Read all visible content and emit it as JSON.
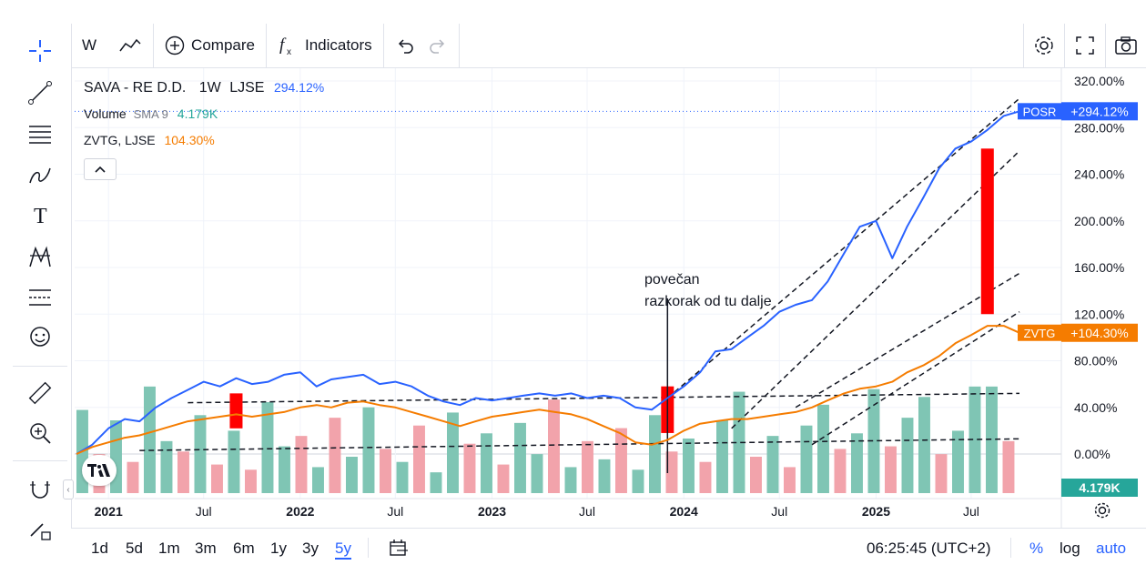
{
  "toolbar": {
    "interval": "W",
    "compare_label": "Compare",
    "indicators_label": "Indicators"
  },
  "legend": {
    "main_symbol": "SAVA - RE D.D.",
    "main_interval": "1W",
    "main_exchange": "LJSE",
    "main_value": "294.12%",
    "volume_label": "Volume",
    "volume_ma": "SMA 9",
    "volume_value": "4.179K",
    "compare_symbol": "ZVTG, LJSE",
    "compare_value": "104.30%"
  },
  "annotation": {
    "line1": "povečan",
    "line2": "razkorak od tu dalje"
  },
  "price_scale": {
    "labels": [
      "320.00%",
      "280.00%",
      "240.00%",
      "200.00%",
      "160.00%",
      "120.00%",
      "80.00%",
      "40.00%",
      "0.00%"
    ],
    "posr_tag": "POSR",
    "posr_value": "+294.12%",
    "zvtg_tag": "ZVTG",
    "zvtg_value": "+104.30%",
    "volume_tag": "4.179K"
  },
  "time_scale": {
    "labels": [
      "2021",
      "Jul",
      "2022",
      "Jul",
      "2023",
      "Jul",
      "2024",
      "Jul",
      "2025",
      "Jul"
    ]
  },
  "bottom": {
    "ranges": [
      "1d",
      "5d",
      "1m",
      "3m",
      "6m",
      "1y",
      "3y",
      "5y"
    ],
    "active_range": "5y",
    "clock": "06:25:45 (UTC+2)",
    "pct": "%",
    "log": "log",
    "auto": "auto"
  },
  "colors": {
    "posr": "#2962ff",
    "zvtg": "#f57c00",
    "vol_up": "#7fc5b4",
    "vol_down": "#f2a3ab",
    "annotation_bar": "#ff0000"
  },
  "chart_data": {
    "type": "line",
    "x_range": [
      "2020-11",
      "2025-10"
    ],
    "y_unit": "%",
    "ylim": [
      -20,
      330
    ],
    "log_scale": false,
    "series": [
      {
        "name": "POSR",
        "points": [
          [
            "2020-11-01",
            0
          ],
          [
            "2020-12-01",
            8
          ],
          [
            "2021-01-01",
            22
          ],
          [
            "2021-02-01",
            30
          ],
          [
            "2021-03-01",
            28
          ],
          [
            "2021-04-01",
            40
          ],
          [
            "2021-05-01",
            48
          ],
          [
            "2021-06-01",
            55
          ],
          [
            "2021-07-01",
            62
          ],
          [
            "2021-08-01",
            58
          ],
          [
            "2021-09-01",
            65
          ],
          [
            "2021-10-01",
            60
          ],
          [
            "2021-11-01",
            62
          ],
          [
            "2021-12-01",
            68
          ],
          [
            "2022-01-01",
            70
          ],
          [
            "2022-02-01",
            58
          ],
          [
            "2022-03-01",
            64
          ],
          [
            "2022-04-01",
            66
          ],
          [
            "2022-05-01",
            68
          ],
          [
            "2022-06-01",
            60
          ],
          [
            "2022-07-01",
            62
          ],
          [
            "2022-08-01",
            58
          ],
          [
            "2022-09-01",
            50
          ],
          [
            "2022-10-01",
            45
          ],
          [
            "2022-11-01",
            42
          ],
          [
            "2022-12-01",
            48
          ],
          [
            "2023-01-01",
            46
          ],
          [
            "2023-02-01",
            48
          ],
          [
            "2023-03-01",
            50
          ],
          [
            "2023-04-01",
            52
          ],
          [
            "2023-05-01",
            50
          ],
          [
            "2023-06-01",
            52
          ],
          [
            "2023-07-01",
            48
          ],
          [
            "2023-08-01",
            50
          ],
          [
            "2023-09-01",
            48
          ],
          [
            "2023-10-01",
            40
          ],
          [
            "2023-11-01",
            38
          ],
          [
            "2023-12-01",
            48
          ],
          [
            "2024-01-01",
            58
          ],
          [
            "2024-02-01",
            70
          ],
          [
            "2024-03-01",
            88
          ],
          [
            "2024-04-01",
            90
          ],
          [
            "2024-05-01",
            100
          ],
          [
            "2024-06-01",
            110
          ],
          [
            "2024-07-01",
            122
          ],
          [
            "2024-08-01",
            128
          ],
          [
            "2024-09-01",
            132
          ],
          [
            "2024-10-01",
            148
          ],
          [
            "2024-11-01",
            172
          ],
          [
            "2024-12-01",
            195
          ],
          [
            "2025-01-01",
            200
          ],
          [
            "2025-02-01",
            168
          ],
          [
            "2025-03-01",
            195
          ],
          [
            "2025-04-01",
            220
          ],
          [
            "2025-05-01",
            245
          ],
          [
            "2025-06-01",
            262
          ],
          [
            "2025-07-01",
            268
          ],
          [
            "2025-08-01",
            278
          ],
          [
            "2025-09-01",
            290
          ],
          [
            "2025-10-01",
            294
          ]
        ]
      },
      {
        "name": "ZVTG",
        "points": [
          [
            "2020-11-01",
            0
          ],
          [
            "2020-12-01",
            6
          ],
          [
            "2021-01-01",
            10
          ],
          [
            "2021-02-01",
            14
          ],
          [
            "2021-03-01",
            16
          ],
          [
            "2021-04-01",
            20
          ],
          [
            "2021-05-01",
            24
          ],
          [
            "2021-06-01",
            28
          ],
          [
            "2021-07-01",
            30
          ],
          [
            "2021-08-01",
            32
          ],
          [
            "2021-09-01",
            34
          ],
          [
            "2021-10-01",
            32
          ],
          [
            "2021-11-01",
            34
          ],
          [
            "2021-12-01",
            36
          ],
          [
            "2022-01-01",
            40
          ],
          [
            "2022-02-01",
            42
          ],
          [
            "2022-03-01",
            40
          ],
          [
            "2022-04-01",
            44
          ],
          [
            "2022-05-01",
            45
          ],
          [
            "2022-06-01",
            42
          ],
          [
            "2022-07-01",
            40
          ],
          [
            "2022-08-01",
            36
          ],
          [
            "2022-09-01",
            32
          ],
          [
            "2022-10-01",
            28
          ],
          [
            "2022-11-01",
            24
          ],
          [
            "2022-12-01",
            28
          ],
          [
            "2023-01-01",
            32
          ],
          [
            "2023-02-01",
            34
          ],
          [
            "2023-03-01",
            36
          ],
          [
            "2023-04-01",
            38
          ],
          [
            "2023-05-01",
            36
          ],
          [
            "2023-06-01",
            34
          ],
          [
            "2023-07-01",
            30
          ],
          [
            "2023-08-01",
            24
          ],
          [
            "2023-09-01",
            18
          ],
          [
            "2023-10-01",
            10
          ],
          [
            "2023-11-01",
            8
          ],
          [
            "2023-12-01",
            12
          ],
          [
            "2024-01-01",
            20
          ],
          [
            "2024-02-01",
            26
          ],
          [
            "2024-03-01",
            28
          ],
          [
            "2024-04-01",
            30
          ],
          [
            "2024-05-01",
            30
          ],
          [
            "2024-06-01",
            32
          ],
          [
            "2024-07-01",
            34
          ],
          [
            "2024-08-01",
            36
          ],
          [
            "2024-09-01",
            40
          ],
          [
            "2024-10-01",
            46
          ],
          [
            "2024-11-01",
            52
          ],
          [
            "2024-12-01",
            56
          ],
          [
            "2025-01-01",
            58
          ],
          [
            "2025-02-01",
            62
          ],
          [
            "2025-03-01",
            70
          ],
          [
            "2025-04-01",
            76
          ],
          [
            "2025-05-01",
            84
          ],
          [
            "2025-06-01",
            95
          ],
          [
            "2025-07-01",
            102
          ],
          [
            "2025-08-01",
            110
          ],
          [
            "2025-09-01",
            110
          ],
          [
            "2025-10-01",
            104
          ]
        ]
      }
    ],
    "volume_bars": [
      3.2,
      1.5,
      2.8,
      1.2,
      4.1,
      2.0,
      1.6,
      3.0,
      1.1,
      2.4,
      0.9,
      3.5,
      1.8,
      2.2,
      1.0,
      2.9,
      1.4,
      3.3,
      1.7,
      1.2,
      2.6,
      0.8,
      3.1,
      1.9,
      2.3,
      1.1,
      2.7,
      1.5,
      3.6,
      1.0,
      2.0,
      1.3,
      2.5,
      0.9,
      3.0,
      1.6,
      2.1,
      1.2,
      2.8,
      3.9,
      1.4,
      2.2,
      1.0,
      2.6,
      3.4,
      1.7,
      2.3,
      4.0,
      1.8,
      2.9,
      3.7,
      1.5,
      2.4,
      4.1,
      4.1,
      2.0
    ],
    "volume_dir": [
      "u",
      "d",
      "u",
      "d",
      "u",
      "u",
      "d",
      "u",
      "d",
      "u",
      "d",
      "u",
      "u",
      "d",
      "u",
      "d",
      "u",
      "u",
      "d",
      "u",
      "d",
      "u",
      "u",
      "d",
      "u",
      "d",
      "u",
      "u",
      "d",
      "u",
      "d",
      "u",
      "d",
      "u",
      "u",
      "d",
      "u",
      "d",
      "u",
      "u",
      "d",
      "u",
      "d",
      "u",
      "u",
      "d",
      "u",
      "u",
      "d",
      "u",
      "u",
      "d",
      "u",
      "u",
      "u",
      "d"
    ]
  }
}
